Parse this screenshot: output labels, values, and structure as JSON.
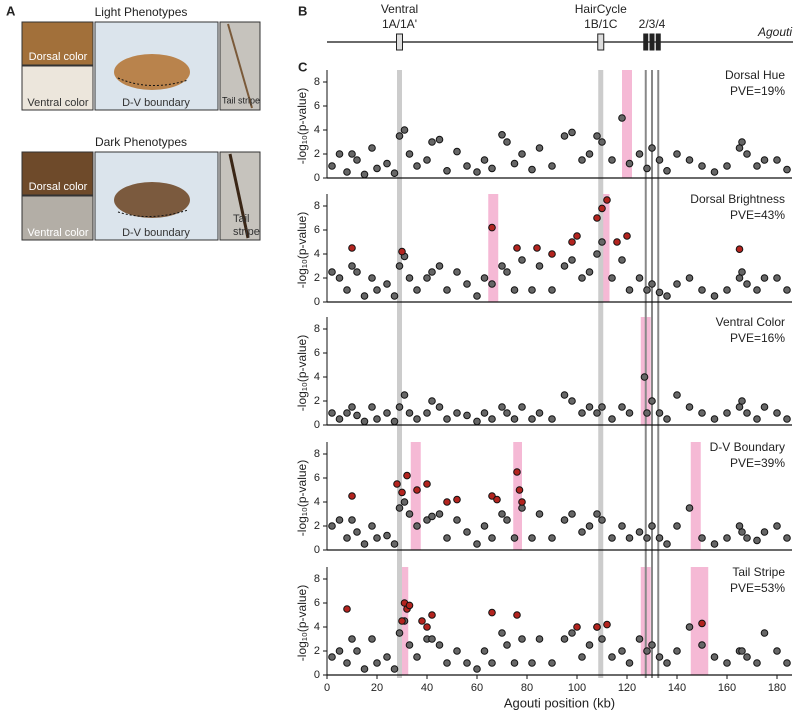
{
  "panel_a": {
    "label": "A",
    "light": {
      "title": "Light Phenotypes",
      "dorsal": "Dorsal color",
      "ventral": "Ventral color",
      "boundary": "D-V boundary",
      "tail": "Tail stripe"
    },
    "dark": {
      "title": "Dark Phenotypes",
      "dorsal": "Dorsal color",
      "ventral": "Ventral color",
      "boundary": "D-V boundary",
      "tail": [
        "Tail",
        "stripe"
      ]
    }
  },
  "panel_b": {
    "label": "B",
    "gene": "Agouti",
    "exons": [
      {
        "position": 29,
        "label": "Ventral",
        "sublabel": "1A/1A'"
      },
      {
        "position": 109.5,
        "label": "HairCycle",
        "sublabel": "1B/1C"
      },
      {
        "position": 127.5
      },
      {
        "position": 130,
        "sublabel": "2/3/4"
      },
      {
        "position": 132.5
      }
    ]
  },
  "panel_c_label": "C",
  "chart_data": [
    {
      "type": "scatter",
      "title": "Dorsal Hue",
      "subtitle": "PVE=19%",
      "ylabel": "-log₁₀(p-value)",
      "xlim": [
        0,
        186
      ],
      "ylim": [
        0,
        9
      ],
      "yticks": [
        0,
        2,
        4,
        6,
        8
      ],
      "highlight_regions": [
        [
          118,
          122
        ]
      ],
      "highlight_color": "#f2a7cb",
      "series": [
        {
          "color": "#666666",
          "x": [
            2,
            5,
            8,
            10,
            12,
            15,
            18,
            20,
            24,
            27,
            29,
            31,
            33,
            36,
            40,
            42,
            45,
            48,
            52,
            56,
            60,
            63,
            66,
            70,
            72,
            75,
            78,
            82,
            85,
            90,
            95,
            98,
            102,
            105,
            108,
            110,
            114,
            118,
            121,
            125,
            128,
            130,
            133,
            136,
            140,
            145,
            150,
            155,
            160,
            165,
            166,
            168,
            172,
            175,
            180,
            184
          ],
          "values": [
            1,
            2,
            0.5,
            2,
            1.5,
            0.3,
            2.5,
            0.8,
            1.2,
            0.4,
            3.5,
            4,
            2,
            1,
            1.5,
            3,
            3.2,
            0.6,
            2.2,
            1,
            0.5,
            1.5,
            0.8,
            3.6,
            3,
            1.2,
            2,
            0.7,
            2.5,
            1,
            3.5,
            3.8,
            1.5,
            2,
            3.5,
            3,
            1.5,
            5,
            1.2,
            2,
            0.8,
            2.5,
            1.5,
            0.6,
            2,
            1.5,
            1,
            0.5,
            1,
            2.5,
            3,
            2,
            1,
            1.5,
            1.5,
            0.7
          ]
        }
      ]
    },
    {
      "type": "scatter",
      "title": "Dorsal Brightness",
      "subtitle": "PVE=43%",
      "ylabel": "-log₁₀(p-value)",
      "xlim": [
        0,
        186
      ],
      "ylim": [
        0,
        9
      ],
      "yticks": [
        0,
        2,
        4,
        6,
        8
      ],
      "highlight_regions": [
        [
          64.5,
          68.5
        ],
        [
          109,
          113
        ]
      ],
      "highlight_color": "#f2a7cb",
      "series": [
        {
          "color": "#666666",
          "x": [
            2,
            5,
            8,
            10,
            12,
            15,
            18,
            20,
            24,
            27,
            29,
            31,
            33,
            36,
            40,
            42,
            45,
            48,
            52,
            56,
            60,
            63,
            66,
            70,
            72,
            75,
            78,
            82,
            85,
            90,
            95,
            98,
            102,
            105,
            108,
            110,
            114,
            118,
            121,
            125,
            128,
            130,
            133,
            136,
            140,
            145,
            150,
            155,
            160,
            165,
            166,
            168,
            172,
            175,
            180,
            184
          ],
          "values": [
            2.5,
            2,
            1,
            3,
            2.5,
            0.5,
            2,
            1,
            1.5,
            0.5,
            3,
            3.8,
            2,
            1,
            2,
            2.5,
            3,
            1,
            2.5,
            1.5,
            0.5,
            2,
            1.5,
            3,
            2.5,
            1,
            3.5,
            1,
            3,
            1,
            3,
            3.5,
            2,
            2.5,
            4,
            5,
            2,
            3.5,
            1,
            2,
            1,
            1.5,
            0.8,
            0.5,
            1.5,
            2,
            1,
            0.5,
            1,
            2,
            2.5,
            1.5,
            1,
            2,
            2,
            1
          ]
        },
        {
          "color": "#b3241f",
          "x": [
            10,
            30,
            66,
            76,
            84,
            90,
            98,
            100,
            108,
            110,
            112,
            116,
            120,
            165
          ],
          "values": [
            4.5,
            4.2,
            6.2,
            4.5,
            4.5,
            4,
            5,
            5.5,
            7,
            7.8,
            8.5,
            5,
            5.5,
            4.4
          ]
        }
      ]
    },
    {
      "type": "scatter",
      "title": "Ventral Color",
      "subtitle": "PVE=16%",
      "ylabel": "-log₁₀(p-value)",
      "xlim": [
        0,
        186
      ],
      "ylim": [
        0,
        9
      ],
      "yticks": [
        0,
        2,
        4,
        6,
        8
      ],
      "highlight_regions": [
        [
          125.5,
          129.5
        ]
      ],
      "highlight_color": "#f2a7cb",
      "series": [
        {
          "color": "#666666",
          "x": [
            2,
            5,
            8,
            10,
            12,
            15,
            18,
            20,
            24,
            27,
            29,
            31,
            33,
            36,
            40,
            42,
            45,
            48,
            52,
            56,
            60,
            63,
            66,
            70,
            72,
            75,
            78,
            82,
            85,
            90,
            95,
            98,
            102,
            105,
            108,
            110,
            114,
            118,
            121,
            127,
            128,
            130,
            133,
            136,
            140,
            145,
            150,
            155,
            160,
            165,
            166,
            168,
            172,
            175,
            180,
            184
          ],
          "values": [
            1,
            0.5,
            1,
            1.5,
            0.8,
            0.3,
            1.5,
            0.5,
            1,
            0.3,
            1.5,
            2.5,
            1,
            0.5,
            1,
            2,
            1.5,
            0.5,
            1,
            0.8,
            0.3,
            1,
            0.5,
            1.5,
            1,
            0.5,
            1.5,
            0.5,
            1,
            0.5,
            2.5,
            2,
            1,
            1.5,
            1,
            1.5,
            0.5,
            1.5,
            1,
            4,
            1,
            2,
            1,
            0.5,
            2.5,
            1.5,
            1,
            0.5,
            1,
            1.5,
            2,
            1,
            0.5,
            1.5,
            1,
            0.5
          ]
        }
      ]
    },
    {
      "type": "scatter",
      "title": "D-V Boundary",
      "subtitle": "PVE=39%",
      "ylabel": "-log₁₀(p-value)",
      "xlim": [
        0,
        186
      ],
      "ylim": [
        0,
        9
      ],
      "yticks": [
        0,
        2,
        4,
        6,
        8
      ],
      "highlight_regions": [
        [
          33.5,
          37.5
        ],
        [
          74.5,
          78
        ],
        [
          145.5,
          149.5
        ]
      ],
      "highlight_color": "#f2a7cb",
      "series": [
        {
          "color": "#666666",
          "x": [
            2,
            5,
            8,
            10,
            12,
            15,
            18,
            20,
            24,
            27,
            29,
            31,
            33,
            36,
            40,
            42,
            45,
            48,
            52,
            56,
            60,
            63,
            66,
            70,
            72,
            75,
            78,
            82,
            85,
            90,
            95,
            98,
            102,
            105,
            108,
            110,
            114,
            118,
            121,
            125,
            128,
            130,
            133,
            136,
            140,
            145,
            150,
            155,
            160,
            165,
            166,
            168,
            172,
            175,
            180,
            184
          ],
          "values": [
            2,
            2.5,
            1,
            2.5,
            1.5,
            0.5,
            2,
            1,
            1.2,
            0.5,
            3.5,
            4,
            3,
            2,
            2.5,
            2.8,
            3,
            1,
            2.5,
            1.5,
            0.5,
            2,
            1,
            3,
            2.5,
            1,
            3.5,
            1,
            3,
            1,
            2.5,
            3,
            1.5,
            2,
            3,
            2.5,
            1,
            2,
            1,
            1.5,
            1,
            2,
            1,
            0.5,
            2,
            3.5,
            1,
            0.5,
            1,
            2,
            1.5,
            1,
            0.8,
            1.5,
            2,
            1
          ]
        },
        {
          "color": "#b3241f",
          "x": [
            10,
            28,
            30,
            32,
            36,
            40,
            48,
            52,
            66,
            68,
            76,
            77,
            78
          ],
          "values": [
            4.5,
            5.5,
            4.8,
            6.2,
            5,
            5.5,
            4,
            4.2,
            4.5,
            4.2,
            6.5,
            5,
            4
          ]
        }
      ]
    },
    {
      "type": "scatter",
      "title": "Tail Stripe",
      "subtitle": "PVE=53%",
      "ylabel": "-log₁₀(p-value)",
      "xlabel": "Agouti position (kb)",
      "xlim": [
        0,
        186
      ],
      "ylim": [
        0,
        9
      ],
      "yticks": [
        0,
        2,
        4,
        6,
        8
      ],
      "xticks": [
        0,
        20,
        40,
        60,
        80,
        100,
        120,
        140,
        160,
        180
      ],
      "highlight_regions": [
        [
          28.5,
          32.5
        ],
        [
          125.5,
          129.5
        ],
        [
          145.5,
          152.5
        ]
      ],
      "highlight_color": "#f2a7cb",
      "series": [
        {
          "color": "#666666",
          "x": [
            2,
            5,
            8,
            10,
            12,
            15,
            18,
            20,
            24,
            27,
            29,
            31,
            33,
            36,
            40,
            42,
            45,
            48,
            52,
            56,
            60,
            63,
            66,
            70,
            72,
            75,
            78,
            82,
            85,
            90,
            95,
            98,
            102,
            105,
            108,
            110,
            114,
            118,
            121,
            125,
            128,
            130,
            133,
            136,
            140,
            145,
            150,
            155,
            160,
            165,
            166,
            168,
            172,
            175,
            180,
            184
          ],
          "values": [
            1.5,
            2,
            1,
            3,
            2,
            0.5,
            3,
            1,
            1.5,
            0.5,
            3.5,
            4.5,
            2.5,
            1.5,
            3,
            3,
            2.5,
            1,
            2,
            1,
            0.5,
            2,
            1,
            3.5,
            2.5,
            1,
            3,
            1,
            3,
            1,
            3,
            3.5,
            1.5,
            2.5,
            4,
            3,
            1.5,
            2,
            1,
            3,
            2,
            2.5,
            1.5,
            1,
            2,
            4,
            2.5,
            1.5,
            1,
            2,
            2,
            1.5,
            1,
            3.5,
            2,
            1
          ]
        },
        {
          "color": "#b3241f",
          "x": [
            8,
            30,
            31,
            32,
            33,
            38,
            40,
            42,
            66,
            76,
            100,
            108,
            112,
            150
          ],
          "values": [
            5.5,
            4.5,
            6,
            5.5,
            5.8,
            4.5,
            4,
            5,
            5.2,
            5,
            4,
            4,
            4.2,
            4.3
          ]
        }
      ]
    }
  ]
}
